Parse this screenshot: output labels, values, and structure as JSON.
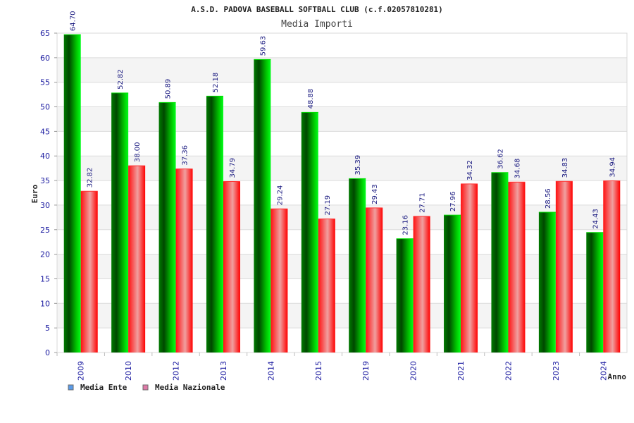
{
  "chart_data": {
    "type": "bar",
    "title": "A.S.D. PADOVA BASEBALL SOFTBALL CLUB (c.f.02057810281)",
    "subtitle": "Media Importi",
    "xlabel": "Anno",
    "ylabel": "Euro",
    "categories": [
      "2009",
      "2010",
      "2012",
      "2013",
      "2014",
      "2015",
      "2019",
      "2020",
      "2021",
      "2022",
      "2023",
      "2024"
    ],
    "series": [
      {
        "name": "Media Ente",
        "values": [
          64.7,
          52.82,
          50.89,
          52.18,
          59.63,
          48.88,
          35.39,
          23.16,
          27.96,
          36.62,
          28.56,
          24.43
        ],
        "labels": [
          "64.70",
          "52.82",
          "50.89",
          "52.18",
          "59.63",
          "48.88",
          "35.39",
          "23.16",
          "27.96",
          "36.62",
          "28.56",
          "24.43"
        ],
        "color": "#00b000",
        "legend_color": "#5a9be8"
      },
      {
        "name": "Media Nazionale",
        "values": [
          32.82,
          38.0,
          37.36,
          34.79,
          29.24,
          27.19,
          29.43,
          27.71,
          34.32,
          34.68,
          34.83,
          34.94
        ],
        "labels": [
          "32.82",
          "38.00",
          "37.36",
          "34.79",
          "29.24",
          "27.19",
          "29.43",
          "27.71",
          "34.32",
          "34.68",
          "34.83",
          "34.94"
        ],
        "color": "#e8101a",
        "legend_color": "#e07aa8"
      }
    ],
    "ylim": [
      0,
      65
    ],
    "yticks": [
      "0",
      "5",
      "10",
      "15",
      "20",
      "25",
      "30",
      "35",
      "40",
      "45",
      "50",
      "55",
      "60",
      "65"
    ],
    "grid": true,
    "legend_position": "bottom-left"
  }
}
